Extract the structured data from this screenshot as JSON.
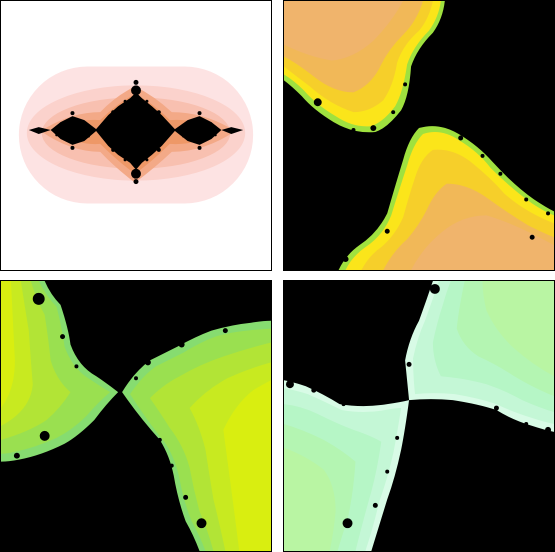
{
  "panels": [
    {
      "id": "overview",
      "palette": "salmon",
      "background": "#ffffff",
      "set_color": "#000000",
      "colors": [
        "#fde3e3",
        "#fbd2cc",
        "#f8c0b0",
        "#f3a987",
        "#ee9867"
      ]
    },
    {
      "id": "zoom-1",
      "palette": "orange-yellow",
      "background": "#000000",
      "set_color": "#000000",
      "colors": [
        "#f0b46c",
        "#f1b858",
        "#f6cf2a",
        "#fbe51a",
        "#d6ef34",
        "#9fe13f"
      ]
    },
    {
      "id": "zoom-2",
      "palette": "yellow-green",
      "background": "#000000",
      "set_color": "#000000",
      "colors": [
        "#d9ee10",
        "#c8ea20",
        "#b2e436",
        "#9ae050",
        "#86dc70"
      ]
    },
    {
      "id": "zoom-3",
      "palette": "mint",
      "background": "#000000",
      "set_color": "#000000",
      "colors": [
        "#b9f5a3",
        "#b4f5b2",
        "#b6f6c6",
        "#c4f7d6",
        "#d8fbe6"
      ]
    }
  ]
}
